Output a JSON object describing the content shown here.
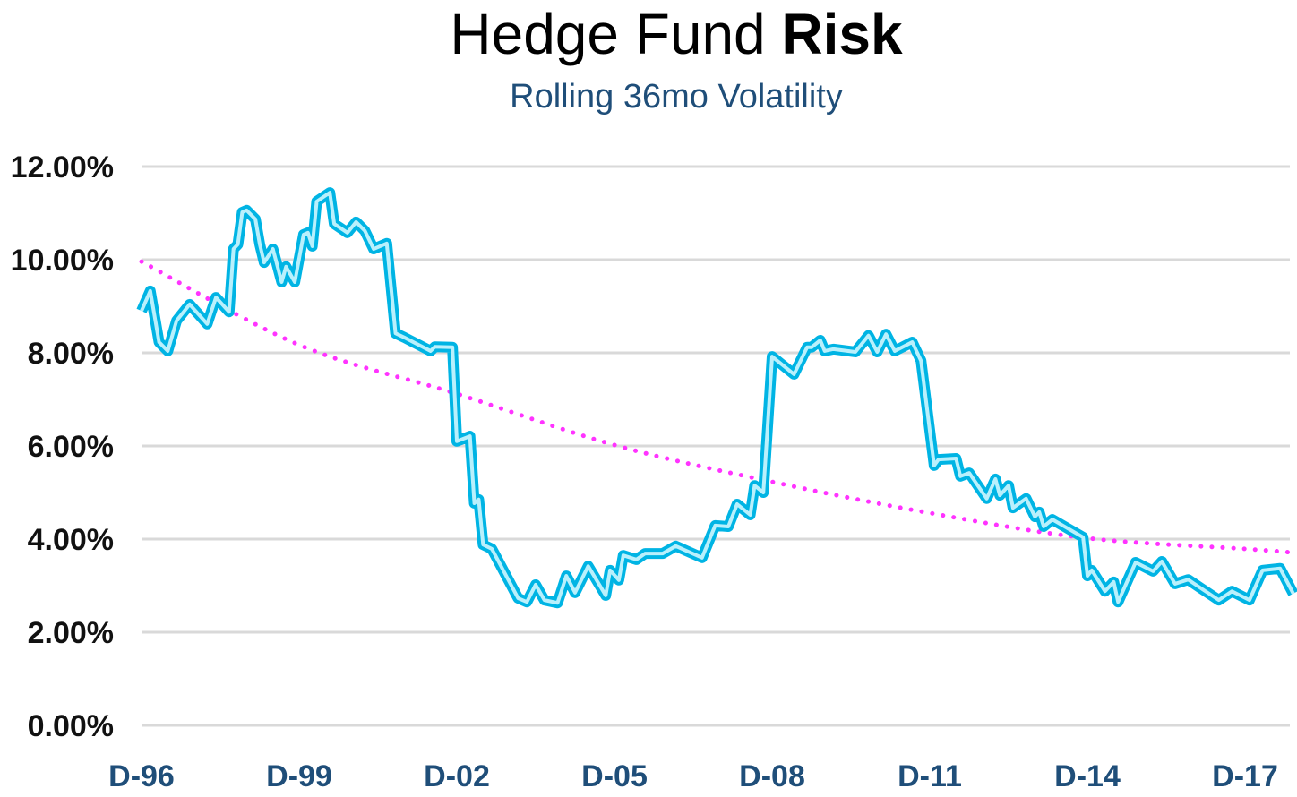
{
  "chart_data": {
    "type": "line",
    "title": "Hedge Fund Risk",
    "title_emphasis": "Risk",
    "subtitle": "Rolling 36mo Volatility",
    "xlabel": "",
    "ylabel": "",
    "ylim": [
      0,
      12
    ],
    "xlim": [
      "1996-12",
      "2018-11"
    ],
    "y_ticks": [
      "0.00%",
      "2.00%",
      "4.00%",
      "6.00%",
      "8.00%",
      "10.00%",
      "12.00%"
    ],
    "y_tick_values": [
      0,
      2,
      4,
      6,
      8,
      10,
      12
    ],
    "x_ticks": [
      "D-96",
      "D-99",
      "D-02",
      "D-05",
      "D-08",
      "D-11",
      "D-14",
      "D-17"
    ],
    "x_tick_dates": [
      "1996-12",
      "1999-12",
      "2002-12",
      "2005-12",
      "2008-12",
      "2011-12",
      "2014-12",
      "2017-12"
    ],
    "grid": true,
    "legend": "none",
    "colors": {
      "line_outer": "#00b4e4",
      "line_inner": "#b9f0fc",
      "trend": "#ff33ff",
      "grid": "#d9d9d9",
      "subtitle": "#1f4e79",
      "x_ticks": "#1f4e79"
    },
    "series": [
      {
        "values_unit": "percent",
        "points": [
          [
            "1996-12",
            8.9
          ],
          [
            "1997-02",
            9.33
          ],
          [
            "1997-04",
            8.23
          ],
          [
            "1997-06",
            8.04
          ],
          [
            "1997-08",
            8.69
          ],
          [
            "1997-11",
            9.04
          ],
          [
            "1998-03",
            8.62
          ],
          [
            "1998-05",
            9.19
          ],
          [
            "1998-08",
            8.88
          ],
          [
            "1998-09",
            10.23
          ],
          [
            "1998-10",
            10.33
          ],
          [
            "1998-11",
            11.02
          ],
          [
            "1998-12",
            11.06
          ],
          [
            "1999-02",
            10.87
          ],
          [
            "1999-03",
            10.33
          ],
          [
            "1999-04",
            9.94
          ],
          [
            "1999-06",
            10.23
          ],
          [
            "1999-08",
            9.52
          ],
          [
            "1999-09",
            9.85
          ],
          [
            "1999-11",
            9.52
          ],
          [
            "2000-01",
            10.54
          ],
          [
            "2000-02",
            10.58
          ],
          [
            "2000-03",
            10.29
          ],
          [
            "2000-04",
            11.25
          ],
          [
            "2000-07",
            11.44
          ],
          [
            "2000-08",
            10.77
          ],
          [
            "2000-11",
            10.58
          ],
          [
            "2001-01",
            10.81
          ],
          [
            "2001-03",
            10.62
          ],
          [
            "2001-05",
            10.23
          ],
          [
            "2001-08",
            10.35
          ],
          [
            "2001-10",
            8.42
          ],
          [
            "2001-12",
            8.33
          ],
          [
            "2002-06",
            8.04
          ],
          [
            "2002-07",
            8.13
          ],
          [
            "2002-11",
            8.12
          ],
          [
            "2002-12",
            6.1
          ],
          [
            "2003-03",
            6.21
          ],
          [
            "2003-04",
            4.77
          ],
          [
            "2003-05",
            4.85
          ],
          [
            "2003-06",
            3.88
          ],
          [
            "2003-08",
            3.79
          ],
          [
            "2004-02",
            2.73
          ],
          [
            "2004-04",
            2.65
          ],
          [
            "2004-06",
            3.02
          ],
          [
            "2004-08",
            2.69
          ],
          [
            "2004-11",
            2.63
          ],
          [
            "2005-01",
            3.21
          ],
          [
            "2005-03",
            2.85
          ],
          [
            "2005-06",
            3.42
          ],
          [
            "2005-10",
            2.79
          ],
          [
            "2005-11",
            3.33
          ],
          [
            "2006-01",
            3.12
          ],
          [
            "2006-02",
            3.65
          ],
          [
            "2006-05",
            3.56
          ],
          [
            "2006-07",
            3.69
          ],
          [
            "2006-11",
            3.69
          ],
          [
            "2007-02",
            3.85
          ],
          [
            "2007-08",
            3.6
          ],
          [
            "2007-11",
            4.29
          ],
          [
            "2008-02",
            4.27
          ],
          [
            "2008-04",
            4.75
          ],
          [
            "2008-07",
            4.52
          ],
          [
            "2008-08",
            5.15
          ],
          [
            "2008-10",
            5.0
          ],
          [
            "2008-12",
            7.92
          ],
          [
            "2009-05",
            7.54
          ],
          [
            "2009-08",
            8.12
          ],
          [
            "2009-09",
            8.12
          ],
          [
            "2009-11",
            8.27
          ],
          [
            "2009-12",
            8.04
          ],
          [
            "2010-02",
            8.08
          ],
          [
            "2010-07",
            8.02
          ],
          [
            "2010-10",
            8.37
          ],
          [
            "2010-12",
            8.02
          ],
          [
            "2011-02",
            8.4
          ],
          [
            "2011-04",
            8.04
          ],
          [
            "2011-08",
            8.23
          ],
          [
            "2011-10",
            7.83
          ],
          [
            "2012-01",
            5.58
          ],
          [
            "2012-02",
            5.71
          ],
          [
            "2012-06",
            5.73
          ],
          [
            "2012-07",
            5.35
          ],
          [
            "2012-09",
            5.42
          ],
          [
            "2013-01",
            4.87
          ],
          [
            "2013-03",
            5.29
          ],
          [
            "2013-04",
            4.94
          ],
          [
            "2013-06",
            5.15
          ],
          [
            "2013-07",
            4.67
          ],
          [
            "2013-10",
            4.87
          ],
          [
            "2013-12",
            4.48
          ],
          [
            "2014-01",
            4.58
          ],
          [
            "2014-02",
            4.27
          ],
          [
            "2014-04",
            4.42
          ],
          [
            "2014-11",
            4.04
          ],
          [
            "2014-12",
            3.21
          ],
          [
            "2015-01",
            3.33
          ],
          [
            "2015-04",
            2.88
          ],
          [
            "2015-06",
            3.08
          ],
          [
            "2015-07",
            2.65
          ],
          [
            "2015-11",
            3.5
          ],
          [
            "2016-03",
            3.31
          ],
          [
            "2016-05",
            3.52
          ],
          [
            "2016-08",
            3.04
          ],
          [
            "2016-11",
            3.13
          ],
          [
            "2017-02",
            2.94
          ],
          [
            "2017-06",
            2.69
          ],
          [
            "2017-09",
            2.88
          ],
          [
            "2018-01",
            2.69
          ],
          [
            "2018-04",
            3.33
          ],
          [
            "2018-08",
            3.37
          ],
          [
            "2018-11",
            2.83
          ]
        ]
      }
    ],
    "trendline": {
      "style": "dotted",
      "points": [
        [
          "1996-12",
          9.96
        ],
        [
          "1999-12",
          8.17
        ],
        [
          "2002-12",
          7.12
        ],
        [
          "2005-12",
          6.02
        ],
        [
          "2008-12",
          5.23
        ],
        [
          "2011-12",
          4.56
        ],
        [
          "2014-12",
          4.02
        ],
        [
          "2017-12",
          3.79
        ],
        [
          "2018-11",
          3.71
        ]
      ]
    }
  }
}
